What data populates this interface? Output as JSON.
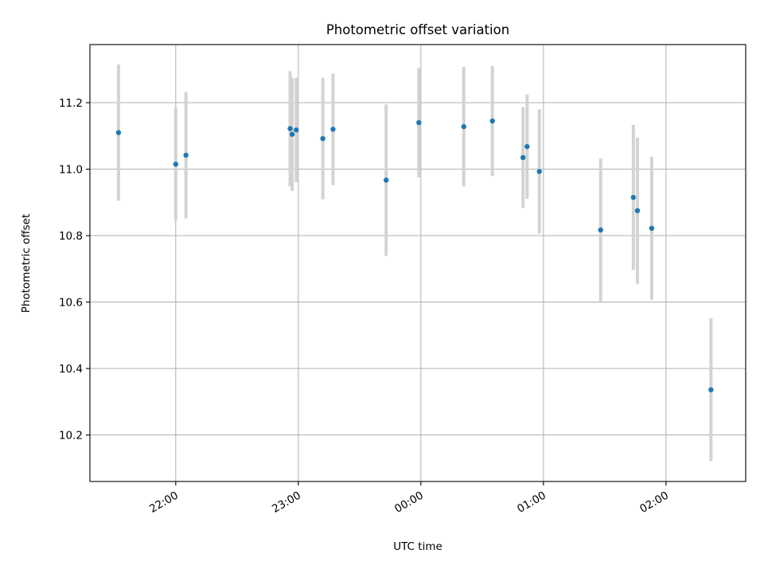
{
  "chart_data": {
    "type": "scatter",
    "title": "Photometric offset variation",
    "xlabel": "UTC time",
    "ylabel": "Photometric offset",
    "x_type": "time",
    "xlim": [
      "21:18",
      "02:39"
    ],
    "ylim": [
      10.06,
      11.375
    ],
    "grid": true,
    "x_ticks": [
      "22:00",
      "23:00",
      "00:00",
      "01:00",
      "02:00"
    ],
    "y_ticks": [
      10.2,
      10.4,
      10.6,
      10.8,
      11.0,
      11.2
    ],
    "marker_color": "#1f77b4",
    "errorbar_color": "#d3d3d3",
    "points": [
      {
        "x": "21:32",
        "y": 11.11,
        "err": 0.205
      },
      {
        "x": "22:00",
        "y": 11.015,
        "err": 0.17
      },
      {
        "x": "22:05",
        "y": 11.042,
        "err": 0.19
      },
      {
        "x": "22:56",
        "y": 11.122,
        "err": 0.173
      },
      {
        "x": "22:57",
        "y": 11.105,
        "err": 0.17
      },
      {
        "x": "22:59",
        "y": 11.118,
        "err": 0.157
      },
      {
        "x": "23:12",
        "y": 11.092,
        "err": 0.183
      },
      {
        "x": "23:17",
        "y": 11.12,
        "err": 0.168
      },
      {
        "x": "23:43",
        "y": 10.967,
        "err": 0.228
      },
      {
        "x": "23:59",
        "y": 11.14,
        "err": 0.165
      },
      {
        "x": "00:21",
        "y": 11.128,
        "err": 0.18
      },
      {
        "x": "00:35",
        "y": 11.145,
        "err": 0.166
      },
      {
        "x": "00:50",
        "y": 11.035,
        "err": 0.152
      },
      {
        "x": "00:52",
        "y": 11.068,
        "err": 0.157
      },
      {
        "x": "00:58",
        "y": 10.993,
        "err": 0.187
      },
      {
        "x": "01:28",
        "y": 10.817,
        "err": 0.215
      },
      {
        "x": "01:44",
        "y": 10.915,
        "err": 0.218
      },
      {
        "x": "01:46",
        "y": 10.875,
        "err": 0.22
      },
      {
        "x": "01:53",
        "y": 10.822,
        "err": 0.215
      },
      {
        "x": "02:22",
        "y": 10.336,
        "err": 0.215
      }
    ]
  }
}
